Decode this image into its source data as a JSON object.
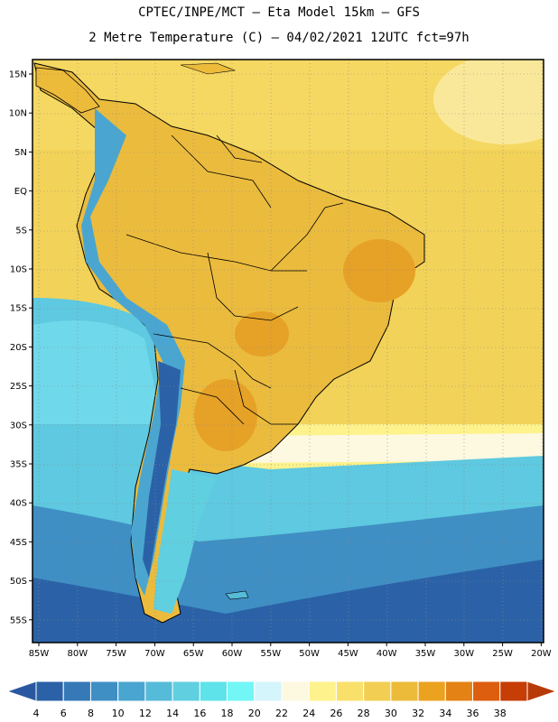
{
  "title": {
    "line1": "CPTEC/INPE/MCT –  Eta Model 15km – GFS",
    "line2": "2 Metre Temperature (C) – 04/02/2021 12UTC fct=97h"
  },
  "lat_labels": [
    "15N",
    "10N",
    "5N",
    "EQ",
    "5S",
    "10S",
    "15S",
    "20S",
    "25S",
    "30S",
    "35S",
    "40S",
    "45S",
    "50S",
    "55S"
  ],
  "lon_labels": [
    "85W",
    "80W",
    "75W",
    "70W",
    "65W",
    "60W",
    "55W",
    "50W",
    "45W",
    "40W",
    "35W",
    "30W",
    "25W",
    "20W"
  ],
  "colorbar": {
    "labels": [
      "4",
      "6",
      "8",
      "10",
      "12",
      "14",
      "16",
      "18",
      "20",
      "22",
      "24",
      "26",
      "28",
      "30",
      "32",
      "34",
      "36",
      "38"
    ],
    "colors": [
      "#2b62a7",
      "#3579b7",
      "#3f8fc4",
      "#4aa6d0",
      "#56bbd8",
      "#60cfe0",
      "#5ee3ea",
      "#72f6f6",
      "#d4f5fb",
      "#fdf8e0",
      "#fef28c",
      "#f8e06a",
      "#f2cf52",
      "#ecbb3a",
      "#eaa21f",
      "#e58216",
      "#dc5e0e",
      "#c63d05"
    ],
    "low_color": "#2a58a0",
    "high_color": "#b83a08"
  },
  "colors": {
    "frame": "#000000",
    "warm_land": "#ebbb3e",
    "hot_land": "#e6a127",
    "warm_ocean": "#f2d258",
    "mild_ocean": "#fef28c",
    "cool_ocean": "#5ec9e0",
    "cold_ocean": "#3f8fc4",
    "very_cold_ocean": "#2b62a7",
    "andes": "#4aa6d0"
  }
}
